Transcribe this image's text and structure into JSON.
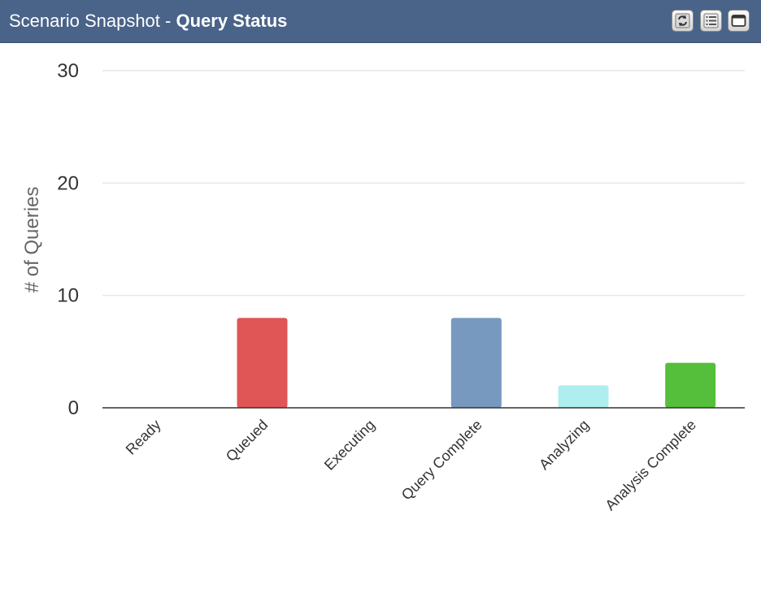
{
  "header": {
    "title_prefix": "Scenario Snapshot - ",
    "title_bold": "Query Status",
    "buttons": [
      {
        "name": "refresh-icon"
      },
      {
        "name": "list-icon"
      },
      {
        "name": "maximize-icon"
      }
    ]
  },
  "chart_data": {
    "type": "bar",
    "title": "",
    "xlabel": "",
    "ylabel": "# of Queries",
    "ylim": [
      0,
      30
    ],
    "yticks": [
      0,
      10,
      20,
      30
    ],
    "grid": true,
    "legend": "none",
    "categories": [
      "Ready",
      "Queued",
      "Executing",
      "Query Complete",
      "Analyzing",
      "Analysis Complete"
    ],
    "values": [
      0,
      8,
      0,
      8,
      2,
      4
    ],
    "colors": [
      "#7798bf",
      "#e05555",
      "#f7a35c",
      "#7798bf",
      "#aeeeee",
      "#55bf3b"
    ]
  }
}
